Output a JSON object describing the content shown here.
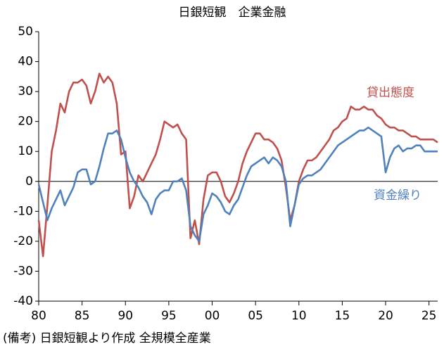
{
  "chart_data": {
    "type": "line",
    "title": "日銀短観　企業金融",
    "x": [
      1980,
      1980.5,
      1981,
      1981.5,
      1982,
      1982.5,
      1983,
      1983.5,
      1984,
      1984.5,
      1985,
      1985.5,
      1986,
      1986.5,
      1987,
      1987.5,
      1988,
      1988.5,
      1989,
      1989.5,
      1990,
      1990.5,
      1991,
      1991.5,
      1992,
      1992.5,
      1993,
      1993.5,
      1994,
      1994.5,
      1995,
      1995.5,
      1996,
      1996.5,
      1997,
      1997.5,
      1998,
      1998.5,
      1999,
      1999.5,
      2000,
      2000.5,
      2001,
      2001.5,
      2002,
      2002.5,
      2003,
      2003.5,
      2004,
      2004.5,
      2005,
      2005.5,
      2006,
      2006.5,
      2007,
      2007.5,
      2008,
      2008.5,
      2009,
      2009.5,
      2010,
      2010.5,
      2011,
      2011.5,
      2012,
      2012.5,
      2013,
      2013.5,
      2014,
      2014.5,
      2015,
      2015.5,
      2016,
      2016.5,
      2017,
      2017.5,
      2018,
      2018.5,
      2019,
      2019.5,
      2020,
      2020.5,
      2021,
      2021.5,
      2022,
      2022.5,
      2023,
      2023.5,
      2024,
      2024.5,
      2025,
      2025.5,
      2026
    ],
    "series": [
      {
        "name": "貸出態度",
        "color": "#c0504d",
        "values": [
          -13,
          -25,
          -8,
          10,
          17,
          26,
          23,
          30,
          33,
          33,
          34,
          32,
          26,
          30,
          36,
          33,
          35,
          33,
          26,
          9,
          10,
          -9,
          -5,
          2,
          0,
          3,
          6,
          9,
          14,
          20,
          19,
          18,
          19,
          16,
          14,
          -19,
          -13,
          -21,
          -6,
          2,
          3,
          3,
          0,
          -5,
          -7,
          -4,
          0,
          6,
          10,
          13,
          16,
          16,
          14,
          14,
          13,
          11,
          7,
          -2,
          -13,
          -8,
          0,
          4,
          7,
          7,
          8,
          10,
          12,
          14,
          17,
          18,
          20,
          21,
          25,
          24,
          24,
          25,
          24,
          24,
          22,
          21,
          19,
          18,
          18,
          17,
          17,
          16,
          15,
          15,
          14,
          14,
          14,
          14,
          13
        ]
      },
      {
        "name": "資金繰り",
        "color": "#4f81bd",
        "values": [
          -1,
          -7,
          -13,
          -9,
          -6,
          -3,
          -8,
          -5,
          -2,
          3,
          4,
          4,
          -1,
          0,
          5,
          11,
          16,
          16,
          17,
          14,
          8,
          3,
          0,
          -2,
          -5,
          -7,
          -11,
          -6,
          -4,
          -3,
          -3,
          0,
          0,
          1,
          -3,
          -15,
          -18,
          -20,
          -11,
          -8,
          -4,
          -5,
          -7,
          -10,
          -11,
          -8,
          -6,
          -2,
          2,
          5,
          6,
          7,
          8,
          6,
          8,
          7,
          5,
          0,
          -15,
          -8,
          -1,
          1,
          2,
          2,
          3,
          4,
          6,
          8,
          10,
          12,
          13,
          14,
          15,
          16,
          17,
          17,
          18,
          17,
          16,
          15,
          3,
          8,
          11,
          12,
          10,
          11,
          11,
          12,
          12,
          10,
          10,
          10,
          10
        ]
      }
    ],
    "xlim": [
      1980,
      2026
    ],
    "ylim": [
      -40,
      50
    ],
    "xticks": [
      {
        "value": 1980,
        "label": "80"
      },
      {
        "value": 1985,
        "label": "85"
      },
      {
        "value": 1990,
        "label": "90"
      },
      {
        "value": 1995,
        "label": "95"
      },
      {
        "value": 2000,
        "label": "00"
      },
      {
        "value": 2005,
        "label": "05"
      },
      {
        "value": 2010,
        "label": "10"
      },
      {
        "value": 2015,
        "label": "15"
      },
      {
        "value": 2020,
        "label": "20"
      },
      {
        "value": 2025,
        "label": "25"
      }
    ],
    "yticks": [
      -40,
      -30,
      -20,
      -10,
      0,
      10,
      20,
      30,
      40,
      50
    ],
    "grid": false,
    "note": "(備考) 日銀短観より作成 全規模全産業"
  }
}
